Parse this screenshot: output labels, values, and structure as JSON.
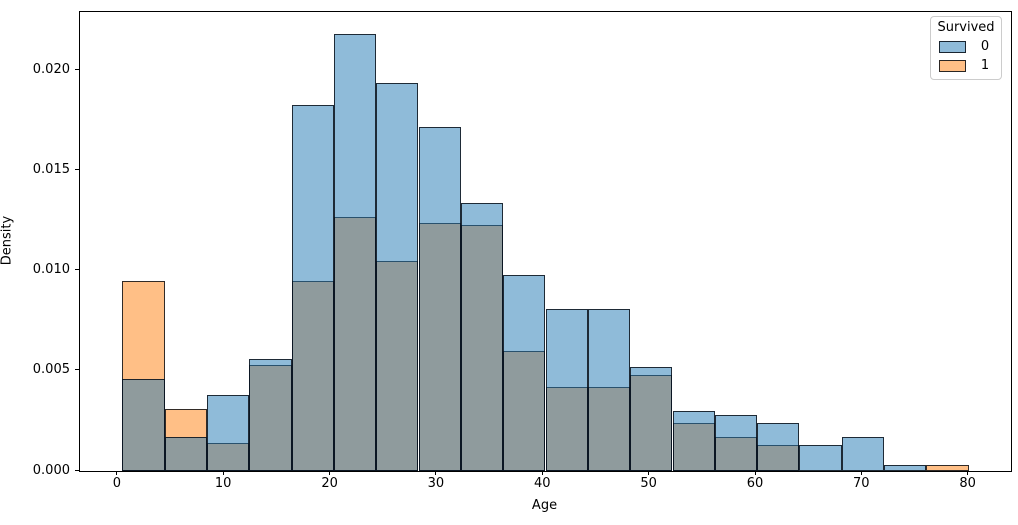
{
  "chart_data": {
    "type": "bar",
    "subtype": "overlapping-density-histogram",
    "title": "",
    "xlabel": "Age",
    "ylabel": "Density",
    "grid": false,
    "xlim": [
      -3.56,
      83.98
    ],
    "ylim": [
      0,
      0.02292
    ],
    "bin_edges": [
      0.42,
      4.4,
      8.38,
      12.36,
      16.34,
      20.32,
      24.29,
      28.27,
      32.25,
      36.23,
      40.21,
      44.19,
      48.17,
      52.15,
      56.13,
      60.11,
      64.08,
      68.06,
      72.04,
      76.02,
      80.0
    ],
    "series": [
      {
        "name": "1",
        "color": "#ff7f0e",
        "fill": "rgba(255,127,14,0.5)",
        "values": [
          0.0095,
          0.0031,
          0.0014,
          0.0053,
          0.0095,
          0.0127,
          0.0105,
          0.0124,
          0.0123,
          0.006,
          0.0042,
          0.0042,
          0.0048,
          0.0024,
          0.0017,
          0.0013,
          0,
          0,
          0,
          0.0003
        ]
      },
      {
        "name": "0",
        "color": "#1f77b4",
        "fill": "rgba(31,119,180,0.5)",
        "values": [
          0.0046,
          0.0017,
          0.0038,
          0.0056,
          0.0183,
          0.0218,
          0.0194,
          0.0172,
          0.0134,
          0.0098,
          0.0081,
          0.0081,
          0.0052,
          0.003,
          0.0028,
          0.0024,
          0.0013,
          0.0017,
          0.0003,
          0
        ]
      }
    ],
    "xticks": {
      "values": [
        0,
        10,
        20,
        30,
        40,
        50,
        60,
        70,
        80
      ],
      "labels": [
        "0",
        "10",
        "20",
        "30",
        "40",
        "50",
        "60",
        "70",
        "80"
      ]
    },
    "yticks": {
      "values": [
        0,
        0.005,
        0.01,
        0.015,
        0.02
      ],
      "labels": [
        "0.000",
        "0.005",
        "0.010",
        "0.015",
        "0.020"
      ]
    },
    "legend": {
      "title": "Survived",
      "position": "upper right",
      "entries": [
        {
          "label": "0",
          "color": "#1f77b4",
          "fill": "rgba(31,119,180,0.5)"
        },
        {
          "label": "1",
          "color": "#ff7f0e",
          "fill": "rgba(255,127,14,0.5)"
        }
      ]
    }
  }
}
